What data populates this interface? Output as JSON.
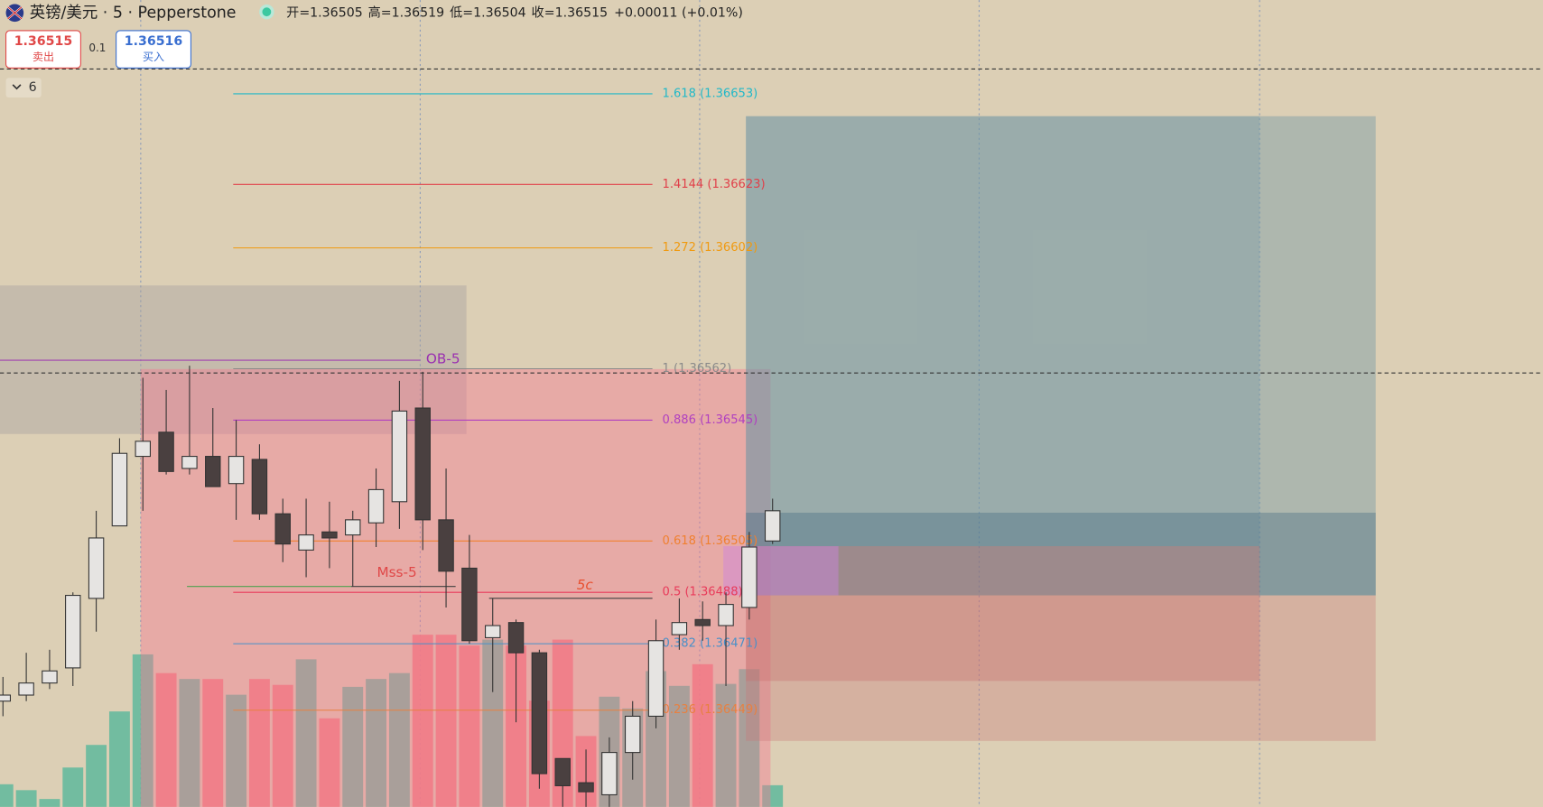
{
  "header": {
    "symbol": "英镑/美元 · 5 · Pepperstone",
    "open": "开=1.36505",
    "high": "高=1.36519",
    "low": "低=1.36504",
    "close": "收=1.36515",
    "change": "+0.00011 (+0.01%)",
    "sell_price": "1.36515",
    "sell_label": "卖出",
    "spread": "0.1",
    "buy_price": "1.36516",
    "buy_label": "买入",
    "indicator_count": "6"
  },
  "chart_data": {
    "type": "candlestick",
    "ylim": [
      1.36417,
      1.36684
    ],
    "up_color": "#e6e4e2",
    "down_color": "#4a4040",
    "volume_up_color": "#5fb89c",
    "volume_down_color": "#f07a7e",
    "open": [
      1.36452,
      1.36454,
      1.36458,
      1.36463,
      1.36486,
      1.3651,
      1.36533,
      1.36541,
      1.36529,
      1.36533,
      1.36524,
      1.36532,
      1.36514,
      1.36502,
      1.36508,
      1.36507,
      1.36511,
      1.36518,
      1.36549,
      1.36512,
      1.36496,
      1.36473,
      1.36478,
      1.36468,
      1.36433,
      1.36425,
      1.36421,
      1.36435,
      1.36447,
      1.36474,
      1.36479,
      1.36477,
      1.36483,
      1.36505
    ],
    "high": [
      1.3646,
      1.36468,
      1.36469,
      1.36488,
      1.36515,
      1.36539,
      1.36559,
      1.36555,
      1.36563,
      1.36549,
      1.36545,
      1.36537,
      1.36519,
      1.36519,
      1.36518,
      1.36515,
      1.36529,
      1.36558,
      1.36561,
      1.36529,
      1.36507,
      1.36486,
      1.36479,
      1.36469,
      1.36433,
      1.36436,
      1.3644,
      1.36452,
      1.36479,
      1.36486,
      1.36485,
      1.36488,
      1.36508,
      1.36519
    ],
    "low": [
      1.36447,
      1.36452,
      1.36456,
      1.36457,
      1.36475,
      1.3651,
      1.36515,
      1.36527,
      1.36527,
      1.36523,
      1.36512,
      1.36512,
      1.36498,
      1.36493,
      1.36496,
      1.3649,
      1.36503,
      1.36509,
      1.36502,
      1.36483,
      1.36471,
      1.36455,
      1.36445,
      1.36423,
      1.36417,
      1.36417,
      1.36417,
      1.36426,
      1.36443,
      1.36469,
      1.36472,
      1.36457,
      1.36479,
      1.36504
    ],
    "close": [
      1.36454,
      1.36458,
      1.36462,
      1.36487,
      1.36506,
      1.36534,
      1.36538,
      1.36528,
      1.36533,
      1.36523,
      1.36533,
      1.36514,
      1.36504,
      1.36507,
      1.36506,
      1.36512,
      1.36522,
      1.36548,
      1.36512,
      1.36495,
      1.36472,
      1.36477,
      1.36468,
      1.36428,
      1.36424,
      1.36422,
      1.36435,
      1.36447,
      1.36472,
      1.36478,
      1.36477,
      1.36484,
      1.36503,
      1.36515
    ],
    "volume": [
      23,
      17,
      8,
      40,
      63,
      97,
      155,
      136,
      130,
      130,
      114,
      130,
      124,
      150,
      90,
      122,
      130,
      136,
      175,
      175,
      164,
      170,
      164,
      108,
      170,
      72,
      112,
      100,
      138,
      123,
      145,
      125,
      140,
      22
    ],
    "fib_levels": [
      {
        "label": "1.618 (1.36653)",
        "price": 1.36653,
        "color": "#20b8c8"
      },
      {
        "label": "1.4144 (1.36623)",
        "price": 1.36623,
        "color": "#e0404a"
      },
      {
        "label": "1.272 (1.36602)",
        "price": 1.36602,
        "color": "#f09a10"
      },
      {
        "label": "1 (1.36562)",
        "price": 1.36562,
        "color": "#8a8a8a"
      },
      {
        "label": "0.886 (1.36545)",
        "price": 1.36545,
        "color": "#b040c0"
      },
      {
        "label": "0.618 (1.36505)",
        "price": 1.36505,
        "color": "#f08030"
      },
      {
        "label": "0.5 (1.36488)",
        "price": 1.36488,
        "color": "#e83a5a"
      },
      {
        "label": "0.382 (1.36471)",
        "price": 1.36471,
        "color": "#4a90c8"
      },
      {
        "label": "0.236 (1.36449)",
        "price": 1.36449,
        "color": "#e88040"
      }
    ],
    "annotations": {
      "ob": "OB-5",
      "mss": "Mss-5",
      "wave": "5c"
    }
  }
}
